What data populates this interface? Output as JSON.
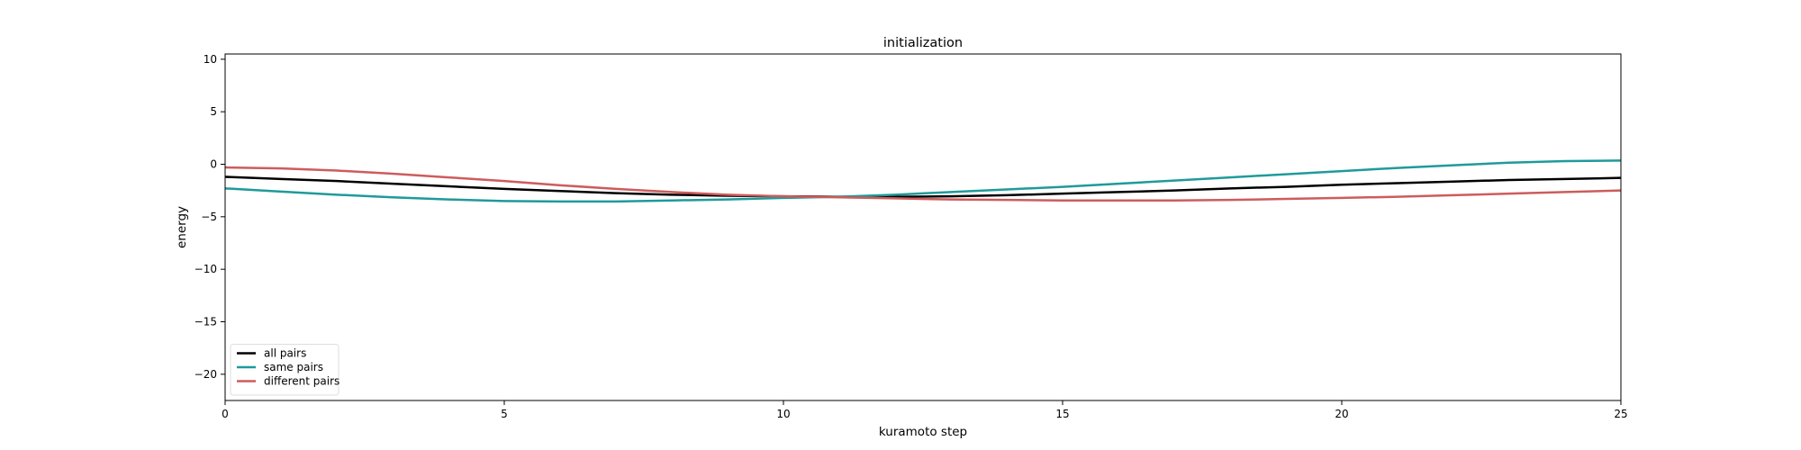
{
  "chart_data": {
    "type": "line",
    "title": "initialization",
    "xlabel": "kuramoto step",
    "ylabel": "energy",
    "xlim": [
      0,
      25
    ],
    "ylim": [
      -22.5,
      10.5
    ],
    "xticks": [
      0,
      5,
      10,
      15,
      20,
      25
    ],
    "xtick_labels": [
      "0",
      "5",
      "10",
      "15",
      "20",
      "25"
    ],
    "yticks": [
      -20,
      -15,
      -10,
      -5,
      0,
      5,
      10
    ],
    "ytick_labels": [
      "−20",
      "−15",
      "−10",
      "−5",
      "0",
      "5",
      "10"
    ],
    "grid": false,
    "legend_position": "lower-left",
    "x": [
      0,
      1,
      2,
      3,
      4,
      5,
      6,
      7,
      8,
      9,
      10,
      11,
      12,
      13,
      14,
      15,
      16,
      17,
      18,
      19,
      20,
      21,
      22,
      23,
      24,
      25
    ],
    "series": [
      {
        "name": "all pairs",
        "color": "#000000",
        "values": [
          -1.2,
          -1.4,
          -1.6,
          -1.85,
          -2.1,
          -2.35,
          -2.55,
          -2.75,
          -2.9,
          -3.0,
          -3.05,
          -3.1,
          -3.1,
          -3.05,
          -2.95,
          -2.8,
          -2.65,
          -2.5,
          -2.3,
          -2.15,
          -1.95,
          -1.8,
          -1.65,
          -1.5,
          -1.4,
          -1.3
        ]
      },
      {
        "name": "same pairs",
        "color": "#1f9a9a",
        "values": [
          -2.3,
          -2.6,
          -2.9,
          -3.15,
          -3.35,
          -3.5,
          -3.55,
          -3.55,
          -3.45,
          -3.35,
          -3.2,
          -3.1,
          -2.9,
          -2.65,
          -2.4,
          -2.15,
          -1.85,
          -1.55,
          -1.25,
          -0.95,
          -0.65,
          -0.35,
          -0.1,
          0.15,
          0.3,
          0.35
        ]
      },
      {
        "name": "different pairs",
        "color": "#cd5c5c",
        "values": [
          -0.3,
          -0.4,
          -0.6,
          -0.9,
          -1.25,
          -1.6,
          -2.0,
          -2.35,
          -2.65,
          -2.9,
          -3.05,
          -3.15,
          -3.25,
          -3.35,
          -3.4,
          -3.45,
          -3.45,
          -3.45,
          -3.4,
          -3.3,
          -3.2,
          -3.1,
          -2.95,
          -2.8,
          -2.65,
          -2.5
        ]
      }
    ]
  }
}
